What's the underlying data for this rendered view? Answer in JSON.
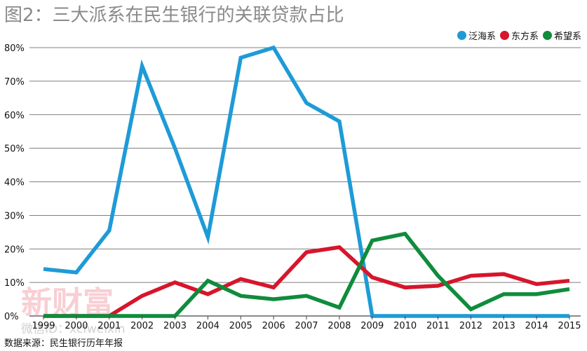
{
  "chart_data": {
    "type": "line",
    "title": "图2：三大派系在民生银行的关联贷款占比",
    "xlabel": "",
    "ylabel": "",
    "ylim": [
      0,
      80
    ],
    "y_ticks": [
      0,
      10,
      20,
      30,
      40,
      50,
      60,
      70,
      80
    ],
    "y_tick_labels": [
      "0%",
      "10%",
      "20%",
      "30%",
      "40%",
      "50%",
      "60%",
      "70%",
      "80%"
    ],
    "categories": [
      "1999",
      "2000",
      "2001",
      "2002",
      "2003",
      "2004",
      "2005",
      "2006",
      "2007",
      "2008",
      "2009",
      "2010",
      "2011",
      "2012",
      "2013",
      "2014",
      "2015"
    ],
    "legend_position": "top-right",
    "grid": "horizontal",
    "series": [
      {
        "name": "泛海系",
        "color": "#1e9bd7",
        "values": [
          14,
          13,
          25.5,
          74.5,
          50,
          23.5,
          77,
          80,
          63.5,
          58,
          0,
          0,
          0,
          0,
          0,
          0,
          0
        ]
      },
      {
        "name": "东方系",
        "color": "#d7152b",
        "values": [
          0,
          0,
          0,
          6,
          10,
          6.5,
          11,
          8.5,
          19,
          20.5,
          11.5,
          8.5,
          9,
          12,
          12.5,
          9.5,
          10.5
        ]
      },
      {
        "name": "希望系",
        "color": "#0f8c3c",
        "values": [
          0,
          0,
          0,
          0,
          0,
          10.5,
          6,
          5,
          6,
          2.5,
          22.5,
          24.5,
          12,
          2,
          6.5,
          6.5,
          8
        ]
      }
    ]
  },
  "source": "数据来源：民生银行历年年报",
  "watermark": {
    "brand": "新财富",
    "account": "微信ID：xcfweixin"
  }
}
